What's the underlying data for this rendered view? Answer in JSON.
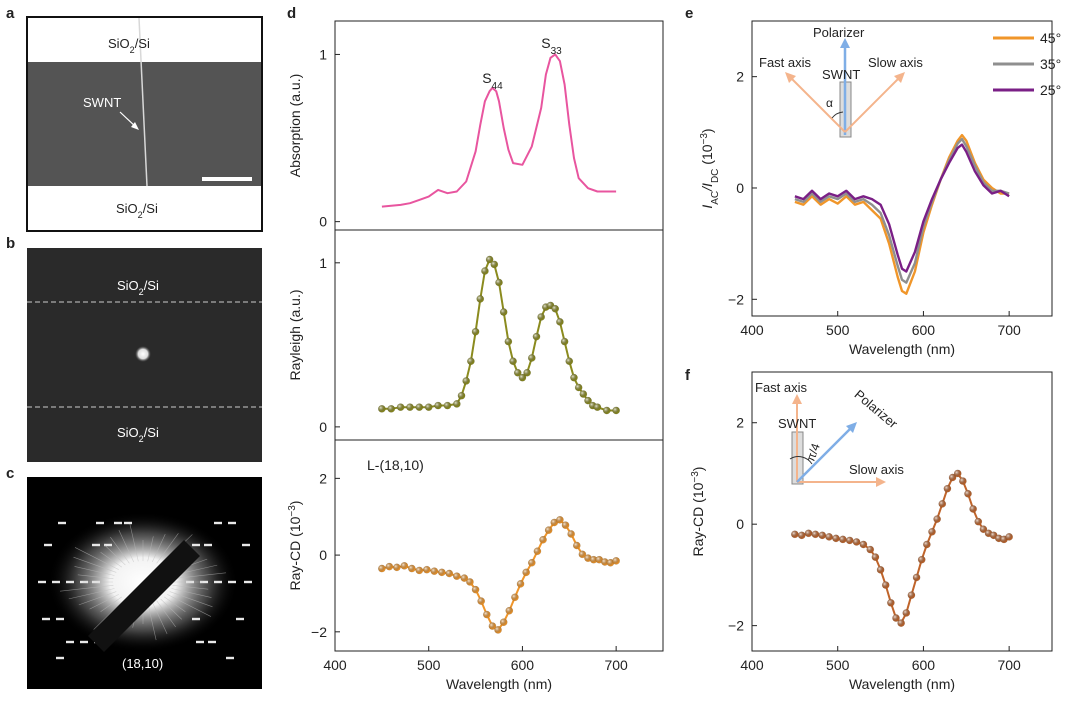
{
  "panels": {
    "a": {
      "label": "a",
      "top_text": "SiO",
      "top_sub": "2",
      "top_tail": "/Si",
      "bottom_text": "SiO",
      "bottom_sub": "2",
      "bottom_tail": "/Si",
      "annotation": "SWNT"
    },
    "b": {
      "label": "b",
      "top_text": "SiO",
      "top_sub": "2",
      "top_tail": "/Si",
      "bottom_text": "SiO",
      "bottom_sub": "2",
      "bottom_tail": "/Si"
    },
    "c": {
      "label": "c",
      "caption": "(18,10)"
    },
    "d": {
      "label": "d"
    },
    "e": {
      "label": "e",
      "inset": {
        "polarizer": "Polarizer",
        "fast_axis": "Fast axis",
        "slow_axis": "Slow axis",
        "swnt": "SWNT",
        "angle": "α"
      }
    },
    "f": {
      "label": "f",
      "inset": {
        "polarizer": "Polarizer",
        "fast_axis": "Fast axis",
        "slow_axis": "Slow axis",
        "swnt": "SWNT",
        "angle": "π/4"
      }
    }
  },
  "colors": {
    "absorption": "#e8559f",
    "rayleigh": "#8b8b1e",
    "raycd_d": "#f0962a",
    "raycd_f": "#c0642a",
    "s45": "#f0962a",
    "s35": "#8f8f8f",
    "s25": "#7a1f86",
    "inset_orange": "#f4b48c",
    "inset_blue": "#7faee6"
  },
  "chart_data": [
    {
      "id": "d-top",
      "type": "line",
      "ylabel": "Absorption  (a.u.)",
      "xlim": [
        400,
        750
      ],
      "ylim": [
        -0.05,
        1.2
      ],
      "yticks": [
        0,
        1
      ],
      "ytick_labels": [
        "0",
        "1"
      ],
      "annotations": [
        {
          "text": "S",
          "sub": "44",
          "x": 568,
          "y": 0.83
        },
        {
          "text": "S",
          "sub": "33",
          "x": 631,
          "y": 1.04
        }
      ],
      "series": [
        {
          "name": "Absorption",
          "x": [
            450,
            470,
            480,
            490,
            500,
            510,
            520,
            530,
            540,
            550,
            555,
            560,
            565,
            568,
            572,
            575,
            580,
            585,
            590,
            600,
            610,
            620,
            625,
            630,
            635,
            640,
            645,
            650,
            655,
            660,
            670,
            680,
            690,
            700
          ],
          "y": [
            0.09,
            0.1,
            0.11,
            0.13,
            0.15,
            0.19,
            0.17,
            0.18,
            0.24,
            0.42,
            0.58,
            0.72,
            0.78,
            0.8,
            0.78,
            0.72,
            0.56,
            0.43,
            0.35,
            0.34,
            0.45,
            0.68,
            0.88,
            0.98,
            1.0,
            0.96,
            0.82,
            0.58,
            0.38,
            0.26,
            0.2,
            0.18,
            0.18,
            0.18
          ]
        }
      ]
    },
    {
      "id": "d-mid",
      "type": "line",
      "ylabel": "Rayleigh (a.u.)",
      "xlim": [
        400,
        750
      ],
      "ylim": [
        -0.08,
        1.2
      ],
      "yticks": [
        0,
        1
      ],
      "ytick_labels": [
        "0",
        "1"
      ],
      "series": [
        {
          "name": "Rayleigh",
          "x": [
            450,
            460,
            470,
            480,
            490,
            500,
            510,
            520,
            530,
            535,
            540,
            545,
            550,
            555,
            560,
            565,
            570,
            575,
            580,
            585,
            590,
            595,
            600,
            605,
            610,
            615,
            620,
            625,
            630,
            635,
            640,
            645,
            650,
            655,
            660,
            665,
            670,
            675,
            680,
            690,
            700
          ],
          "y": [
            0.11,
            0.11,
            0.12,
            0.12,
            0.12,
            0.12,
            0.13,
            0.13,
            0.14,
            0.19,
            0.28,
            0.4,
            0.58,
            0.78,
            0.95,
            1.02,
            0.99,
            0.88,
            0.7,
            0.52,
            0.4,
            0.33,
            0.3,
            0.33,
            0.42,
            0.55,
            0.67,
            0.73,
            0.74,
            0.72,
            0.64,
            0.52,
            0.4,
            0.3,
            0.24,
            0.2,
            0.16,
            0.13,
            0.12,
            0.1,
            0.1
          ]
        }
      ]
    },
    {
      "id": "d-bottom",
      "type": "scatter-line",
      "ylabel": "Ray-CD (10",
      "ylabel_sup": "−3",
      "ylabel_tail": ")",
      "annotation": "L-(18,10)",
      "xlabel": "Wavelength (nm)",
      "xlim": [
        400,
        750
      ],
      "ylim": [
        -2.5,
        3.0
      ],
      "xticks": [
        400,
        500,
        600,
        700
      ],
      "xtick_labels": [
        "400",
        "500",
        "600",
        "700"
      ],
      "yticks": [
        -2,
        0,
        2
      ],
      "ytick_labels": [
        "−2",
        "0",
        "2"
      ],
      "series": [
        {
          "name": "L-(18,10)",
          "x": [
            450,
            458,
            466,
            474,
            482,
            490,
            498,
            506,
            514,
            522,
            530,
            538,
            544,
            550,
            556,
            562,
            568,
            574,
            580,
            586,
            592,
            598,
            604,
            610,
            616,
            622,
            628,
            634,
            640,
            646,
            652,
            658,
            664,
            670,
            676,
            682,
            688,
            694,
            700
          ],
          "y": [
            -0.35,
            -0.3,
            -0.32,
            -0.28,
            -0.35,
            -0.4,
            -0.38,
            -0.42,
            -0.45,
            -0.48,
            -0.55,
            -0.6,
            -0.7,
            -0.9,
            -1.2,
            -1.55,
            -1.85,
            -1.95,
            -1.75,
            -1.45,
            -1.1,
            -0.75,
            -0.45,
            -0.2,
            0.1,
            0.4,
            0.65,
            0.85,
            0.92,
            0.78,
            0.55,
            0.25,
            0.02,
            -0.08,
            -0.12,
            -0.12,
            -0.18,
            -0.2,
            -0.15
          ]
        }
      ]
    },
    {
      "id": "e",
      "type": "line",
      "ylabel": "I",
      "ylabel_sub": "AC",
      "ylabel_mid": "/I",
      "ylabel_sub2": "DC",
      "ylabel_tail": " (10",
      "ylabel_sup": "−3",
      "ylabel_end": ")",
      "xlabel": "Wavelength (nm)",
      "xlim": [
        400,
        750
      ],
      "ylim": [
        -2.3,
        3.0
      ],
      "xticks": [
        400,
        500,
        600,
        700
      ],
      "xtick_labels": [
        "400",
        "500",
        "600",
        "700"
      ],
      "yticks": [
        -2,
        0,
        2
      ],
      "ytick_labels": [
        "−2",
        "0",
        "2"
      ],
      "legend_position": "top-right",
      "x": [
        450,
        460,
        470,
        480,
        490,
        500,
        510,
        520,
        530,
        540,
        550,
        560,
        570,
        575,
        580,
        590,
        600,
        610,
        620,
        630,
        640,
        645,
        650,
        660,
        670,
        680,
        690,
        700
      ],
      "series": [
        {
          "name": "45°",
          "y": [
            -0.25,
            -0.3,
            -0.15,
            -0.3,
            -0.2,
            -0.28,
            -0.15,
            -0.3,
            -0.25,
            -0.4,
            -0.55,
            -1.0,
            -1.6,
            -1.85,
            -1.9,
            -1.5,
            -0.8,
            -0.3,
            0.15,
            0.55,
            0.85,
            0.95,
            0.85,
            0.45,
            0.15,
            0.0,
            -0.1,
            -0.1
          ]
        },
        {
          "name": "35°",
          "y": [
            -0.2,
            -0.25,
            -0.1,
            -0.25,
            -0.15,
            -0.2,
            -0.1,
            -0.25,
            -0.2,
            -0.3,
            -0.45,
            -0.85,
            -1.4,
            -1.65,
            -1.7,
            -1.35,
            -0.7,
            -0.25,
            0.15,
            0.5,
            0.8,
            0.88,
            0.75,
            0.4,
            0.1,
            -0.05,
            -0.05,
            -0.1
          ]
        },
        {
          "name": "25°",
          "y": [
            -0.15,
            -0.2,
            -0.05,
            -0.2,
            -0.1,
            -0.15,
            -0.05,
            -0.2,
            -0.15,
            -0.2,
            -0.3,
            -0.65,
            -1.2,
            -1.45,
            -1.5,
            -1.15,
            -0.6,
            -0.2,
            0.15,
            0.45,
            0.72,
            0.78,
            0.65,
            0.3,
            0.05,
            -0.1,
            -0.05,
            -0.15
          ]
        }
      ]
    },
    {
      "id": "f",
      "type": "scatter-line",
      "ylabel": "Ray-CD (10",
      "ylabel_sup": "−3",
      "ylabel_tail": ")",
      "xlabel": "Wavelength (nm)",
      "xlim": [
        400,
        750
      ],
      "ylim": [
        -2.5,
        3.0
      ],
      "xticks": [
        400,
        500,
        600,
        700
      ],
      "xtick_labels": [
        "400",
        "500",
        "600",
        "700"
      ],
      "yticks": [
        -2,
        0,
        2
      ],
      "ytick_labels": [
        "−2",
        "0",
        "2"
      ],
      "series": [
        {
          "name": "Ray-CD",
          "x": [
            450,
            458,
            466,
            474,
            482,
            490,
            498,
            506,
            514,
            522,
            530,
            538,
            544,
            550,
            556,
            562,
            568,
            574,
            580,
            586,
            592,
            598,
            604,
            610,
            616,
            622,
            628,
            634,
            640,
            646,
            652,
            658,
            664,
            670,
            676,
            682,
            688,
            694,
            700
          ],
          "y": [
            -0.2,
            -0.22,
            -0.18,
            -0.2,
            -0.22,
            -0.25,
            -0.28,
            -0.3,
            -0.32,
            -0.35,
            -0.4,
            -0.5,
            -0.65,
            -0.9,
            -1.2,
            -1.55,
            -1.85,
            -1.95,
            -1.75,
            -1.4,
            -1.05,
            -0.7,
            -0.4,
            -0.15,
            0.1,
            0.4,
            0.7,
            0.92,
            1.0,
            0.85,
            0.6,
            0.3,
            0.05,
            -0.1,
            -0.18,
            -0.22,
            -0.28,
            -0.3,
            -0.25
          ]
        }
      ]
    }
  ]
}
